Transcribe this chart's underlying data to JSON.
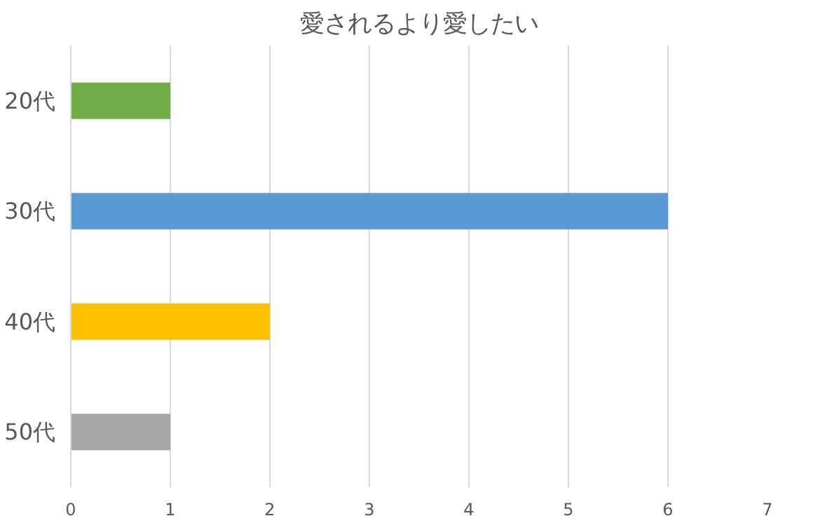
{
  "chart_data": {
    "type": "bar",
    "orientation": "horizontal",
    "title": "愛されるより愛したい",
    "categories": [
      "20代",
      "30代",
      "40代",
      "50代"
    ],
    "values": [
      1,
      6,
      2,
      1
    ],
    "colors": [
      "#70ad47",
      "#5b9bd5",
      "#ffc000",
      "#a5a5a5"
    ],
    "xlim": [
      0,
      7
    ],
    "xticks": [
      0,
      1,
      2,
      3,
      4,
      5,
      6,
      7
    ],
    "grid": "x"
  }
}
